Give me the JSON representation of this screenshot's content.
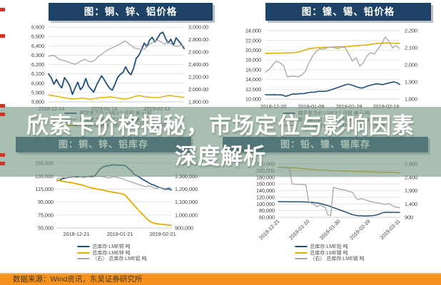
{
  "banner": {
    "line1": "欣索卡价格揭秘，市场定位与影响因素",
    "line2": "深度解析"
  },
  "source_bar": {
    "label": "数据来源：Wind资讯，东吴证券研究所"
  },
  "palette": {
    "navy": "#1f4e79",
    "gold": "#e2ae00",
    "gray": "#a6a6a6",
    "title_bar_bg": "#1d4266",
    "banner_bg": "rgba(116,152,131,0.62)",
    "source_bar_bg": "#f6931f",
    "red_mark": "#d93025"
  },
  "chart_data": [
    {
      "id": "tl",
      "type": "line",
      "title": "图：铜、锌、铝价格",
      "left_axis": {
        "min": 5800,
        "max": 6600,
        "ticks": [
          "6,600",
          "6,500",
          "6,400",
          "6,300",
          "6,200",
          "6,100",
          "6,000",
          "5,900",
          "5,800"
        ]
      },
      "right_axis": {
        "min": 1800,
        "max": 3000,
        "ticks": [
          "3,000.00",
          "2,800.00",
          "2,600.00",
          "2,400.00",
          "2,200.00",
          "2,000.00",
          "1,800.00"
        ]
      },
      "x_labels": [
        "2018-12-14",
        "2019-01-13",
        "2019-02-12"
      ],
      "legend": [
        {
          "label": "期货官方价:LME3个月铜 美元/吨",
          "color": "navy"
        },
        {
          "label": "期货官方价:LME3个月锌 美元/吨",
          "color": "gray"
        },
        {
          "label": "（右）期货官方价:LME3个月铝 美元/吨",
          "color": "gold"
        }
      ],
      "series": [
        {
          "name": "LME3个月铜",
          "axis": "left",
          "color": "navy",
          "width": 1.8,
          "values": [
            6100,
            6060,
            5990,
            6040,
            5985,
            5950,
            6060,
            6020,
            5970,
            5880,
            5950,
            6010,
            5930,
            5965,
            6050,
            5970,
            5935,
            5905,
            5975,
            6030,
            6080,
            6035,
            5985,
            5945,
            5925,
            5990,
            6060,
            6095,
            6115,
            6175,
            6120,
            6090,
            6160,
            6265,
            6300,
            6360,
            6430,
            6390,
            6460,
            6490,
            6440,
            6480,
            6530,
            6545,
            6480,
            6430,
            6470,
            6405,
            6485,
            6450,
            6415,
            6370
          ]
        },
        {
          "name": "LME3个月锌",
          "axis": "right",
          "color": "gray",
          "width": 1.3,
          "values": [
            2530,
            2545,
            2535,
            2490,
            2470,
            2460,
            2440,
            2420,
            2402,
            2430,
            2462,
            2483,
            2452,
            2444,
            2470,
            2528,
            2558,
            2600,
            2638,
            2660,
            2688,
            2710,
            2740,
            2778,
            2745,
            2703,
            2665,
            2652,
            2640,
            2646,
            2700,
            2738,
            2768,
            2790,
            2762,
            2726,
            2758,
            2735,
            2700,
            2688,
            2712,
            2695
          ]
        },
        {
          "name": "LME3个月铝",
          "axis": "right",
          "color": "gold",
          "width": 1.4,
          "values": [
            1912,
            1903,
            1893,
            1882,
            1872,
            1862,
            1852,
            1846,
            1851,
            1856,
            1861,
            1851,
            1841,
            1851,
            1861,
            1871,
            1866,
            1876,
            1881,
            1871,
            1861,
            1851,
            1846,
            1856,
            1871,
            1891,
            1901,
            1891,
            1881,
            1876,
            1871,
            1866,
            1871,
            1886,
            1896,
            1903,
            1893,
            1886,
            1879,
            1874
          ]
        }
      ]
    },
    {
      "id": "tr",
      "type": "line",
      "title": "图：镍、锡、铅价格",
      "left_axis": {
        "min": 10000,
        "max": 24000,
        "ticks": [
          "24,000",
          "22,000",
          "20,000",
          "18,000",
          "16,000",
          "14,000",
          "12,000",
          "10,000"
        ]
      },
      "right_axis": {
        "min": 1800,
        "max": 2200,
        "ticks": [
          "2,200",
          "2,100",
          "2,000",
          "1,900",
          "1,800"
        ]
      },
      "x_labels": [
        "2018-12-20",
        "2019-01-09",
        "2019-01-29",
        "2019-02-18"
      ],
      "legend": [
        {
          "label": "期货官方价:LME3个月镍 美元/吨",
          "color": "navy"
        },
        {
          "label": "期货官方价:LME3个月锡 美元/吨",
          "color": "gold"
        },
        {
          "label": "（右）期货官方价:LME3个月铅 美元/吨",
          "color": "gray"
        }
      ],
      "series": [
        {
          "name": "LME3个月镍",
          "axis": "left",
          "color": "navy",
          "width": 1.6,
          "values": [
            10900,
            10880,
            10860,
            10900,
            10870,
            10840,
            10820,
            10560,
            10700,
            10950,
            11050,
            11000,
            11120,
            11080,
            11200,
            11300,
            11420,
            11380,
            11520,
            11600,
            11560,
            11600,
            11700,
            11900,
            12100,
            12300,
            12500,
            12700,
            12900,
            13050,
            12900,
            12700,
            12500,
            12300,
            12250,
            12500,
            12700,
            12850,
            13000,
            13100,
            13050,
            12950,
            13100,
            13250,
            13400,
            13500,
            13350,
            13000
          ]
        },
        {
          "name": "LME3个月锡",
          "axis": "left",
          "color": "gold",
          "width": 1.6,
          "values": [
            19350,
            19350,
            19380,
            19400,
            19380,
            19400,
            19420,
            19450,
            19480,
            19500,
            19550,
            19700,
            19900,
            20100,
            20300,
            20400,
            20450,
            20500,
            20550,
            20600,
            20580,
            20620,
            20650,
            20700,
            20680,
            20720,
            20750,
            20800,
            20850,
            20900,
            20950,
            21000,
            21050,
            21100,
            21200,
            21300,
            21400,
            21450,
            21500,
            21480,
            21420,
            21450,
            21400,
            21380
          ]
        },
        {
          "name": "LME3个月铅",
          "axis": "right",
          "color": "gray",
          "width": 1.3,
          "values": [
            1958,
            1972,
            2000,
            2022,
            2012,
            1996,
            1930,
            1934,
            1934,
            1930,
            1940,
            1962,
            2012,
            2052,
            2078,
            2094,
            2090,
            2100,
            2104,
            2100,
            2096,
            2104,
            2100,
            2062,
            2022,
            2042,
            1992,
            2012,
            2052,
            2072,
            2062,
            2092,
            2122,
            2162,
            2140,
            2100,
            2112,
            2096
          ]
        }
      ]
    },
    {
      "id": "bl",
      "type": "line",
      "title": "图：铜、锌、铝库存",
      "left_axis": {
        "min": 55000,
        "max": 155000,
        "ticks": [
          "155,000",
          "135,000",
          "115,000",
          "95,000",
          "75,000",
          "55,000"
        ]
      },
      "right_axis": {
        "min": 900000,
        "max": 1400000,
        "ticks": [
          "1,400,000",
          "1,300,000",
          "1,200,000",
          "1,100,000",
          "1,000,000",
          "900,000"
        ]
      },
      "x_labels": [
        "2018-12-21",
        "2019-01-21",
        "2019-02-21"
      ],
      "legend": [
        {
          "label": "总库存:LME铜 吨",
          "color": "navy"
        },
        {
          "label": "总库存:LME锌 吨",
          "color": "gold"
        },
        {
          "label": "（右） 总库存:LME铝 吨",
          "color": "gray"
        }
      ],
      "series": [
        {
          "name": "LME铜库存",
          "axis": "left",
          "color": "navy",
          "width": 1.6,
          "values": [
            128000,
            129000,
            131000,
            132000,
            133000,
            133500,
            134000,
            134500,
            134000,
            133500,
            134000,
            134500,
            135000,
            134500,
            140000,
            146000,
            149000,
            150500,
            151000,
            152000,
            152500,
            152000,
            151500,
            152000,
            151000,
            147000,
            143000,
            138000,
            135500,
            133000,
            130000,
            127500,
            125000,
            122500,
            121000,
            119000,
            117500,
            116000,
            114500,
            115500,
            113500
          ]
        },
        {
          "name": "LME锌库存",
          "axis": "left",
          "color": "gold",
          "width": 1.8,
          "values": [
            129000,
            128000,
            127000,
            126000,
            125500,
            125000,
            124000,
            123000,
            122000,
            121000,
            119500,
            118000,
            117000,
            116000,
            115000,
            114500,
            113500,
            112500,
            111500,
            110500,
            110000,
            109000,
            108500,
            107500,
            105000,
            100000,
            95000,
            90000,
            85000,
            80000,
            76000,
            71000,
            67000,
            64000,
            62500,
            61500,
            61000,
            60500,
            60000,
            59500,
            59000
          ]
        },
        {
          "name": "LME铝库存",
          "axis": "right",
          "color": "gray",
          "width": 1.3,
          "values": [
            1280000,
            1285000,
            1290000,
            1288000,
            1292000,
            1295000,
            1292000,
            1290000,
            1293000,
            1295000,
            1298000,
            1295000,
            1292000,
            1295000,
            1300000,
            1298000,
            1295000,
            1290000,
            1285000,
            1290000,
            1295000,
            1290000,
            1285000,
            1280000,
            1270000,
            1262000,
            1255000,
            1248000,
            1240000,
            1232000,
            1225000,
            1218000,
            1225000,
            1218000,
            1210000,
            1205000,
            1215000,
            1208000,
            1202000,
            1212000,
            1205000
          ]
        }
      ]
    },
    {
      "id": "br",
      "type": "line",
      "title": "图：铅、镍、锡库存",
      "left_axis": {
        "min": 60000,
        "max": 220000,
        "ticks": [
          "220,000",
          "200,000",
          "180,000",
          "160,000",
          "140,000",
          "120,000",
          "100,000",
          "80,000",
          "60,000"
        ]
      },
      "right_axis": {
        "min": 900,
        "max": 2900,
        "ticks": [
          "2,900",
          "2,400",
          "1,900",
          "1,400",
          "900"
        ]
      },
      "x_labels": [
        "2018-12-21",
        "2019-01-10",
        "2019-01-30",
        "2019-02-19",
        "2019-03-11"
      ],
      "legend": [
        {
          "label": "总库存:LME铅 吨",
          "color": "navy"
        },
        {
          "label": "总库存:LME镍 吨",
          "color": "gold"
        },
        {
          "label": "（右） 总库存:LME锡 吨",
          "color": "gray"
        }
      ],
      "series": [
        {
          "name": "LME铅库存",
          "axis": "left",
          "color": "navy",
          "width": 1.5,
          "values": [
            107000,
            107000,
            106800,
            106800,
            106500,
            106500,
            106300,
            106300,
            106000,
            106000,
            105800,
            105500,
            105000,
            104000,
            103000,
            101500,
            99500,
            97000,
            95000,
            92000,
            89000,
            86000,
            83000,
            80000,
            77000,
            74000,
            71000,
            68000,
            66000,
            65000,
            64500,
            64000,
            64000,
            64500,
            65000,
            66000,
            68000,
            71000,
            74000,
            75000,
            75000,
            75000,
            74800,
            74800,
            74800
          ]
        },
        {
          "name": "LME镍库存",
          "axis": "left",
          "color": "gold",
          "width": 1.5,
          "values": [
            210000,
            210500,
            210000,
            209500,
            209000,
            208500,
            208000,
            207500,
            207000,
            206000,
            205000,
            204000,
            203500,
            203000,
            202000,
            201500,
            202000,
            201000,
            200000,
            199500,
            199000,
            199500,
            199000,
            198500,
            198000,
            198500,
            198000,
            197500,
            197000,
            197500,
            197000,
            196500,
            196000,
            196500,
            196000,
            195500,
            195000,
            195500,
            195000,
            194500,
            194000,
            194500,
            194000,
            193500,
            193000
          ]
        },
        {
          "name": "LME锡库存",
          "axis": "right",
          "color": "gray",
          "width": 1.3,
          "values": [
            2760,
            2770,
            2760,
            2750,
            2740,
            2150,
            2140,
            2135,
            2130,
            2125,
            2120,
            1500,
            1420,
            1380,
            1300,
            1360,
            1320,
            1270,
            1000,
            960,
            2020,
            1990,
            1960,
            1940,
            1920,
            1890,
            1860,
            1830,
            1640,
            1560,
            1600,
            1580,
            1540,
            1500,
            1480,
            1460,
            1440,
            1420,
            1400,
            1380,
            1420,
            1360,
            1300,
            1280,
            1260
          ]
        }
      ]
    }
  ]
}
